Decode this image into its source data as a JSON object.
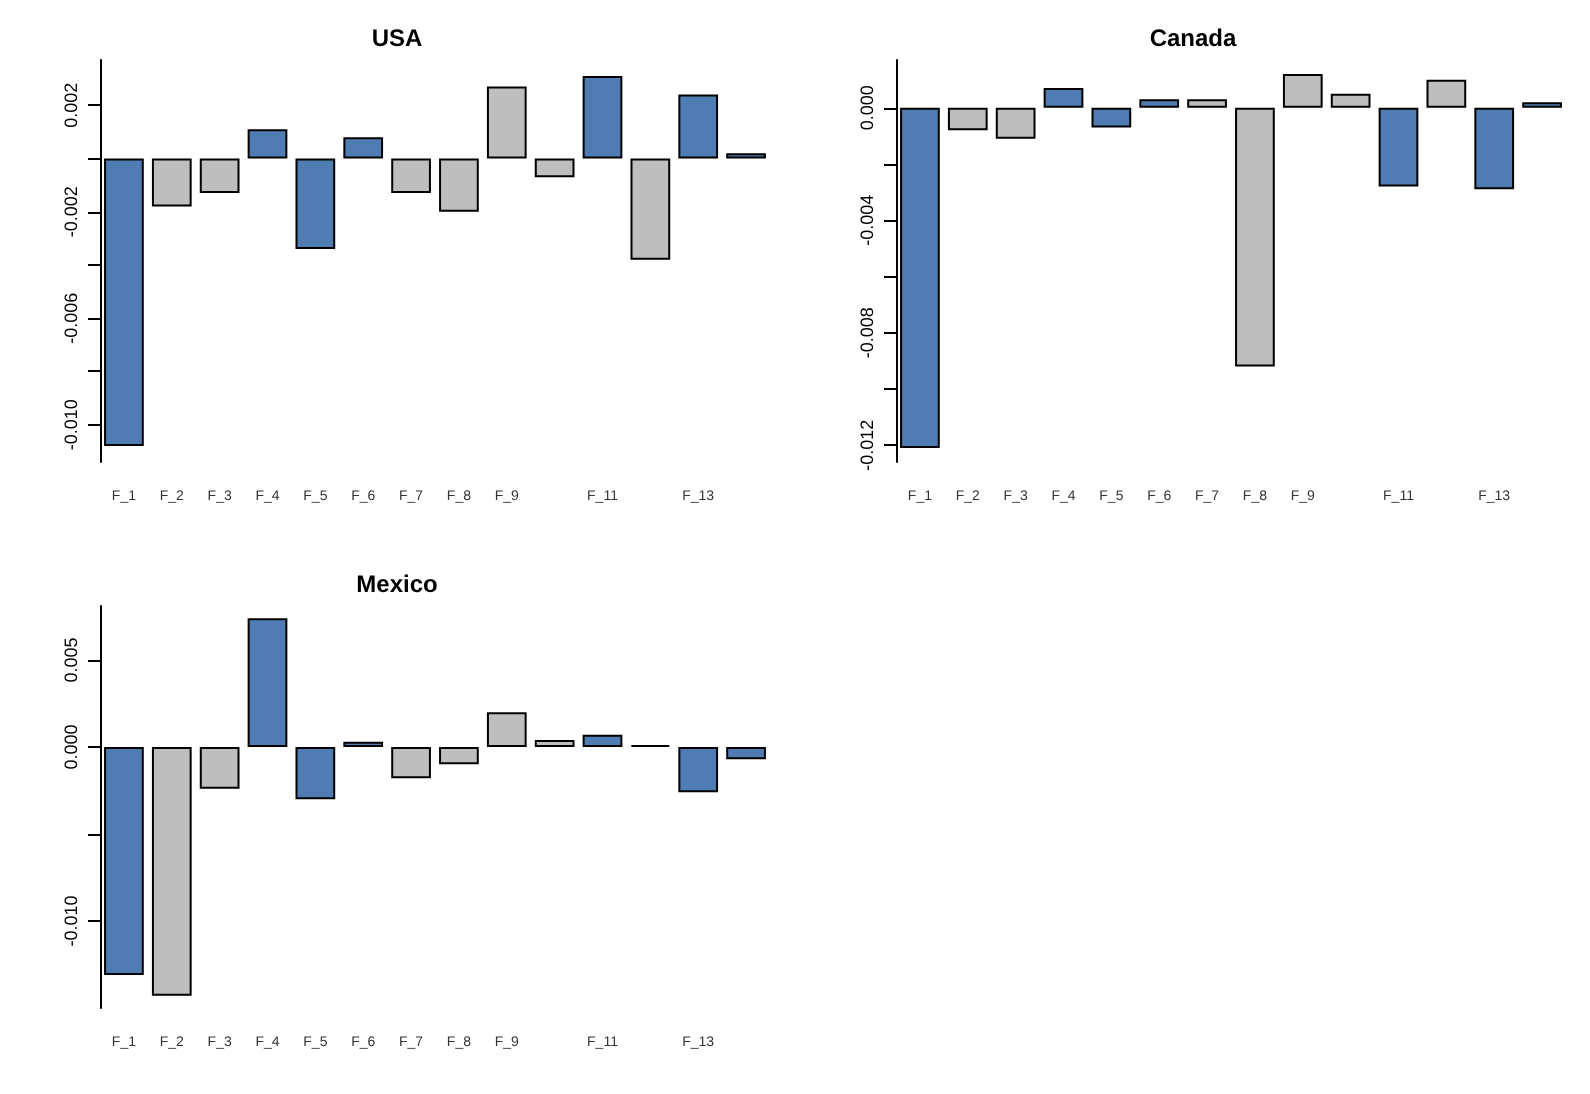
{
  "chart_data": [
    {
      "type": "bar",
      "title": "USA",
      "categories": [
        "F_1",
        "F_2",
        "F_3",
        "F_4",
        "F_5",
        "F_6",
        "F_7",
        "F_8",
        "F_9",
        null,
        "F_11",
        null,
        "F_13",
        null
      ],
      "values": [
        -0.0108,
        -0.0018,
        -0.0013,
        0.0011,
        -0.0034,
        0.0008,
        -0.0013,
        -0.002,
        0.0027,
        -0.0007,
        0.0031,
        -0.0038,
        0.0024,
        0.0002
      ],
      "colors": [
        "#4f7cb3",
        "#bebebe",
        "#bebebe",
        "#4f7cb3",
        "#4f7cb3",
        "#4f7cb3",
        "#bebebe",
        "#bebebe",
        "#bebebe",
        "#bebebe",
        "#4f7cb3",
        "#bebebe",
        "#4f7cb3",
        "#4f7cb3"
      ],
      "ylim": [
        -0.0114,
        0.0037
      ],
      "yticks": [
        {
          "value": -0.01,
          "label": "-0.010"
        },
        {
          "value": -0.008,
          "label": null
        },
        {
          "value": -0.006,
          "label": "-0.006"
        },
        {
          "value": -0.004,
          "label": null
        },
        {
          "value": -0.002,
          "label": "-0.002"
        },
        {
          "value": 0,
          "label": null
        },
        {
          "value": 0.002,
          "label": "0.002"
        }
      ]
    },
    {
      "type": "bar",
      "title": "Canada",
      "categories": [
        "F_1",
        "F_2",
        "F_3",
        "F_4",
        "F_5",
        "F_6",
        "F_7",
        "F_8",
        "F_9",
        null,
        "F_11",
        null,
        "F_13",
        null
      ],
      "values": [
        -0.0121,
        -0.0008,
        -0.0011,
        0.0007,
        -0.0007,
        0.0003,
        0.0003,
        -0.0092,
        0.0012,
        0.0005,
        -0.0028,
        0.001,
        -0.0029,
        0.0002
      ],
      "colors": [
        "#4f7cb3",
        "#bebebe",
        "#bebebe",
        "#4f7cb3",
        "#4f7cb3",
        "#4f7cb3",
        "#bebebe",
        "#bebebe",
        "#bebebe",
        "#bebebe",
        "#4f7cb3",
        "#bebebe",
        "#4f7cb3",
        "#4f7cb3"
      ],
      "ylim": [
        -0.0126,
        0.0017
      ],
      "yticks": [
        {
          "value": -0.012,
          "label": "-0.012"
        },
        {
          "value": -0.01,
          "label": null
        },
        {
          "value": -0.008,
          "label": "-0.008"
        },
        {
          "value": -0.006,
          "label": null
        },
        {
          "value": -0.004,
          "label": "-0.004"
        },
        {
          "value": -0.002,
          "label": null
        },
        {
          "value": 0,
          "label": "0.000"
        }
      ]
    },
    {
      "type": "bar",
      "title": "Mexico",
      "categories": [
        "F_1",
        "F_2",
        "F_3",
        "F_4",
        "F_5",
        "F_6",
        "F_7",
        "F_8",
        "F_9",
        null,
        "F_11",
        null,
        "F_13",
        null
      ],
      "values": [
        -0.0131,
        -0.0143,
        -0.0024,
        0.0074,
        -0.003,
        0.0003,
        -0.0018,
        -0.001,
        0.002,
        0.0004,
        0.0007,
        0.0001,
        -0.0026,
        -0.0007
      ],
      "colors": [
        "#4f7cb3",
        "#bebebe",
        "#bebebe",
        "#4f7cb3",
        "#4f7cb3",
        "#4f7cb3",
        "#bebebe",
        "#bebebe",
        "#bebebe",
        "#bebebe",
        "#4f7cb3",
        "#000000",
        "#4f7cb3",
        "#4f7cb3"
      ],
      "ylim": [
        -0.015,
        0.0081
      ],
      "yticks": [
        {
          "value": -0.01,
          "label": "-0.010"
        },
        {
          "value": -0.005,
          "label": null
        },
        {
          "value": 0,
          "label": "0.000"
        },
        {
          "value": 0.005,
          "label": "0.005"
        }
      ]
    }
  ]
}
